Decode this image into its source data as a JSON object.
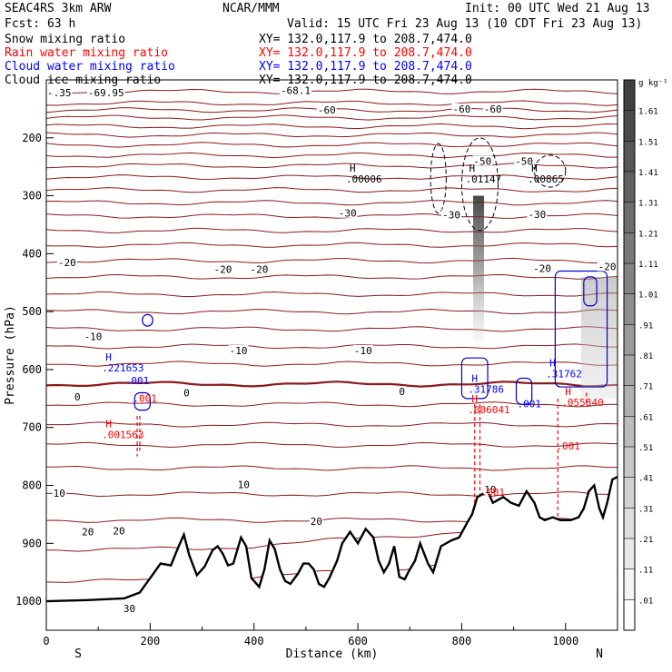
{
  "header": {
    "model": "SEAC4RS  3km ARW",
    "org": "NCAR/MMM",
    "init": "Init: 00 UTC Wed 21 Aug 13",
    "fcst": "Fcst:   63 h",
    "valid": "Valid: 15 UTC Fri 23 Aug 13 (10 CDT Fri 23 Aug 13)"
  },
  "fields": [
    {
      "name": "Snow mixing ratio",
      "xy": "XY= 132.0,117.9 to 208.7,474.0",
      "color": "#000000"
    },
    {
      "name": "Rain water mixing ratio",
      "xy": "XY= 132.0,117.9 to 208.7,474.0",
      "color": "#ff0000"
    },
    {
      "name": "Cloud water mixing ratio",
      "xy": "XY= 132.0,117.9 to 208.7,474.0",
      "color": "#0000ff"
    },
    {
      "name": "Cloud ice mixing ratio",
      "xy": "XY= 132.0,117.9 to 208.7,474.0",
      "color": "#000000"
    }
  ],
  "chart_data": {
    "type": "cross-section",
    "xlabel": "Distance (km)",
    "ylabel": "Pressure (hPa)",
    "x_ticks": [
      0,
      200,
      400,
      600,
      800,
      1000
    ],
    "y_ticks": [
      200,
      300,
      400,
      500,
      600,
      700,
      800,
      900,
      1000
    ],
    "xlim": [
      0,
      1100
    ],
    "ylim": [
      1050,
      100
    ],
    "end_labels": {
      "left": "S",
      "right": "N"
    },
    "colorbar": {
      "unit": "g kg⁻¹",
      "levels": [
        "1.61",
        "1.51",
        "1.41",
        "1.31",
        "1.21",
        "1.11",
        "1.01",
        ".91",
        ".81",
        ".71",
        ".61",
        ".51",
        ".41",
        ".31",
        ".21",
        ".11",
        ".01"
      ]
    },
    "temperature_labels": [
      {
        "text": "-69.95",
        "x": 115,
        "p": 122
      },
      {
        "text": "-68.1",
        "x": 480,
        "p": 118
      },
      {
        "text": "-.35",
        "x": 25,
        "p": 122
      },
      {
        "text": "-60",
        "x": 540,
        "p": 152
      },
      {
        "text": "-60",
        "x": 800,
        "p": 150
      },
      {
        "text": "-60",
        "x": 860,
        "p": 150
      },
      {
        "text": "-50",
        "x": 920,
        "p": 240
      },
      {
        "text": "-50",
        "x": 840,
        "p": 240
      },
      {
        "text": "-30",
        "x": 580,
        "p": 330
      },
      {
        "text": "-30",
        "x": 780,
        "p": 333
      },
      {
        "text": "-30",
        "x": 945,
        "p": 332
      },
      {
        "text": "-20",
        "x": 40,
        "p": 415
      },
      {
        "text": "-20",
        "x": 340,
        "p": 427
      },
      {
        "text": "-20",
        "x": 410,
        "p": 427
      },
      {
        "text": "-20",
        "x": 955,
        "p": 425
      },
      {
        "text": "-20",
        "x": 1080,
        "p": 422
      },
      {
        "text": "-10",
        "x": 90,
        "p": 543
      },
      {
        "text": "-10",
        "x": 370,
        "p": 567
      },
      {
        "text": "-10",
        "x": 610,
        "p": 567
      },
      {
        "text": "0",
        "x": 60,
        "p": 647
      },
      {
        "text": "0",
        "x": 270,
        "p": 640
      },
      {
        "text": "0",
        "x": 685,
        "p": 638
      },
      {
        "text": "10",
        "x": 25,
        "p": 813
      },
      {
        "text": "10",
        "x": 380,
        "p": 798
      },
      {
        "text": "10",
        "x": 855,
        "p": 807
      },
      {
        "text": "20",
        "x": 80,
        "p": 880
      },
      {
        "text": "20",
        "x": 140,
        "p": 878
      },
      {
        "text": "20",
        "x": 520,
        "p": 862
      },
      {
        "text": "30",
        "x": 160,
        "p": 1012
      }
    ],
    "max_labels": [
      {
        "marker": "H",
        "value": ".00006",
        "x": 605,
        "p": 274,
        "color": "#000000"
      },
      {
        "marker": "H",
        "value": ".01147",
        "x": 835,
        "p": 274,
        "color": "#000000"
      },
      {
        "marker": "H",
        "value": ".00865",
        "x": 955,
        "p": 274,
        "color": "#000000"
      },
      {
        "marker": "H",
        "value": ".221653",
        "x": 135,
        "p": 600,
        "color": "#0000ff"
      },
      {
        "marker": "H",
        "value": ".31786",
        "x": 840,
        "p": 637,
        "color": "#0000ff"
      },
      {
        "marker": "H",
        "value": ".31762",
        "x": 990,
        "p": 610,
        "color": "#0000ff"
      },
      {
        "marker": "H",
        "value": ".001563",
        "x": 135,
        "p": 715,
        "color": "#ff0000"
      },
      {
        "marker": "H",
        "value": ".006041",
        "x": 840,
        "p": 672,
        "color": "#ff0000"
      },
      {
        "marker": "H",
        "value": ".055840",
        "x": 1020,
        "p": 660,
        "color": "#ff0000"
      }
    ],
    "contour_labels": [
      {
        "text": ".001",
        "x": 175,
        "p": 625,
        "color": "#0000ff"
      },
      {
        "text": ".001",
        "x": 190,
        "p": 656,
        "color": "#ff0000"
      },
      {
        "text": ".001",
        "x": 930,
        "p": 665,
        "color": "#0000ff"
      },
      {
        "text": ".001",
        "x": 860,
        "p": 818,
        "color": "#ff0000"
      },
      {
        "text": ".001",
        "x": 1005,
        "p": 738,
        "color": "#ff0000"
      }
    ],
    "terrain": [
      [
        0,
        1000
      ],
      [
        80,
        998
      ],
      [
        150,
        995
      ],
      [
        180,
        985
      ],
      [
        200,
        960
      ],
      [
        220,
        935
      ],
      [
        240,
        938
      ],
      [
        255,
        905
      ],
      [
        265,
        885
      ],
      [
        275,
        920
      ],
      [
        290,
        955
      ],
      [
        305,
        940
      ],
      [
        320,
        912
      ],
      [
        330,
        905
      ],
      [
        340,
        918
      ],
      [
        350,
        938
      ],
      [
        360,
        935
      ],
      [
        375,
        890
      ],
      [
        385,
        905
      ],
      [
        395,
        960
      ],
      [
        410,
        975
      ],
      [
        420,
        945
      ],
      [
        430,
        895
      ],
      [
        440,
        910
      ],
      [
        450,
        945
      ],
      [
        460,
        965
      ],
      [
        470,
        970
      ],
      [
        485,
        952
      ],
      [
        495,
        935
      ],
      [
        505,
        935
      ],
      [
        515,
        945
      ],
      [
        525,
        970
      ],
      [
        535,
        975
      ],
      [
        545,
        960
      ],
      [
        560,
        930
      ],
      [
        570,
        900
      ],
      [
        585,
        880
      ],
      [
        600,
        900
      ],
      [
        615,
        875
      ],
      [
        630,
        890
      ],
      [
        640,
        930
      ],
      [
        650,
        950
      ],
      [
        660,
        935
      ],
      [
        670,
        905
      ],
      [
        680,
        958
      ],
      [
        690,
        962
      ],
      [
        700,
        945
      ],
      [
        710,
        930
      ],
      [
        720,
        900
      ],
      [
        735,
        935
      ],
      [
        745,
        950
      ],
      [
        760,
        905
      ],
      [
        780,
        895
      ],
      [
        795,
        890
      ],
      [
        810,
        865
      ],
      [
        820,
        850
      ],
      [
        830,
        820
      ],
      [
        850,
        810
      ],
      [
        860,
        830
      ],
      [
        880,
        820
      ],
      [
        895,
        830
      ],
      [
        910,
        835
      ],
      [
        925,
        810
      ],
      [
        940,
        830
      ],
      [
        950,
        855
      ],
      [
        960,
        860
      ],
      [
        975,
        855
      ],
      [
        990,
        860
      ],
      [
        1010,
        860
      ],
      [
        1025,
        855
      ],
      [
        1035,
        840
      ],
      [
        1045,
        810
      ],
      [
        1055,
        800
      ],
      [
        1065,
        840
      ],
      [
        1072,
        855
      ],
      [
        1080,
        830
      ],
      [
        1090,
        790
      ],
      [
        1100,
        785
      ]
    ]
  }
}
